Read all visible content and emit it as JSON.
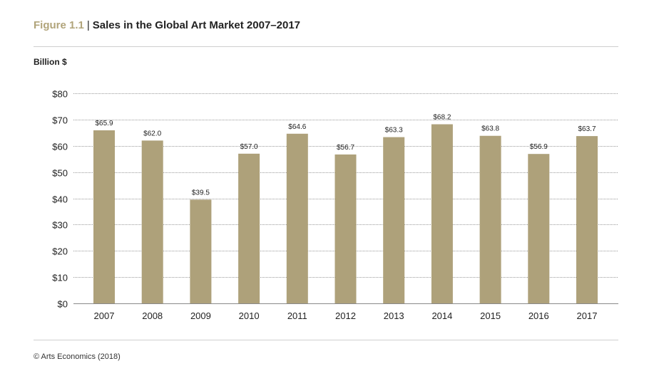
{
  "figure": {
    "label": "Figure 1.1",
    "separator": "|",
    "title": "Sales in the Global Art Market 2007–2017"
  },
  "unit_label": "Billion $",
  "source": "© Arts Economics (2018)",
  "colors": {
    "bar": "#aea17a",
    "accent": "#b1a47a",
    "grid": "#9a9a9a",
    "text": "#222222"
  },
  "chart_data": {
    "type": "bar",
    "title": "Sales in the Global Art Market 2007–2017",
    "ylabel": "Billion $",
    "xlabel": "",
    "categories": [
      "2007",
      "2008",
      "2009",
      "2010",
      "2011",
      "2012",
      "2013",
      "2014",
      "2015",
      "2016",
      "2017"
    ],
    "values": [
      65.9,
      62.0,
      39.5,
      57.0,
      64.6,
      56.7,
      63.3,
      68.2,
      63.8,
      56.9,
      63.7
    ],
    "value_labels": [
      "$65.9",
      "$62.0",
      "$39.5",
      "$57.0",
      "$64.6",
      "$56.7",
      "$63.3",
      "$68.2",
      "$63.8",
      "$56.9",
      "$63.7"
    ],
    "ylim": [
      0,
      80
    ],
    "yticks": [
      0,
      10,
      20,
      30,
      40,
      50,
      60,
      70,
      80
    ],
    "ytick_labels": [
      "$0",
      "$10",
      "$20",
      "$30",
      "$40",
      "$50",
      "$60",
      "$70",
      "$80"
    ],
    "grid": "dotted horizontal",
    "legend": "none"
  }
}
